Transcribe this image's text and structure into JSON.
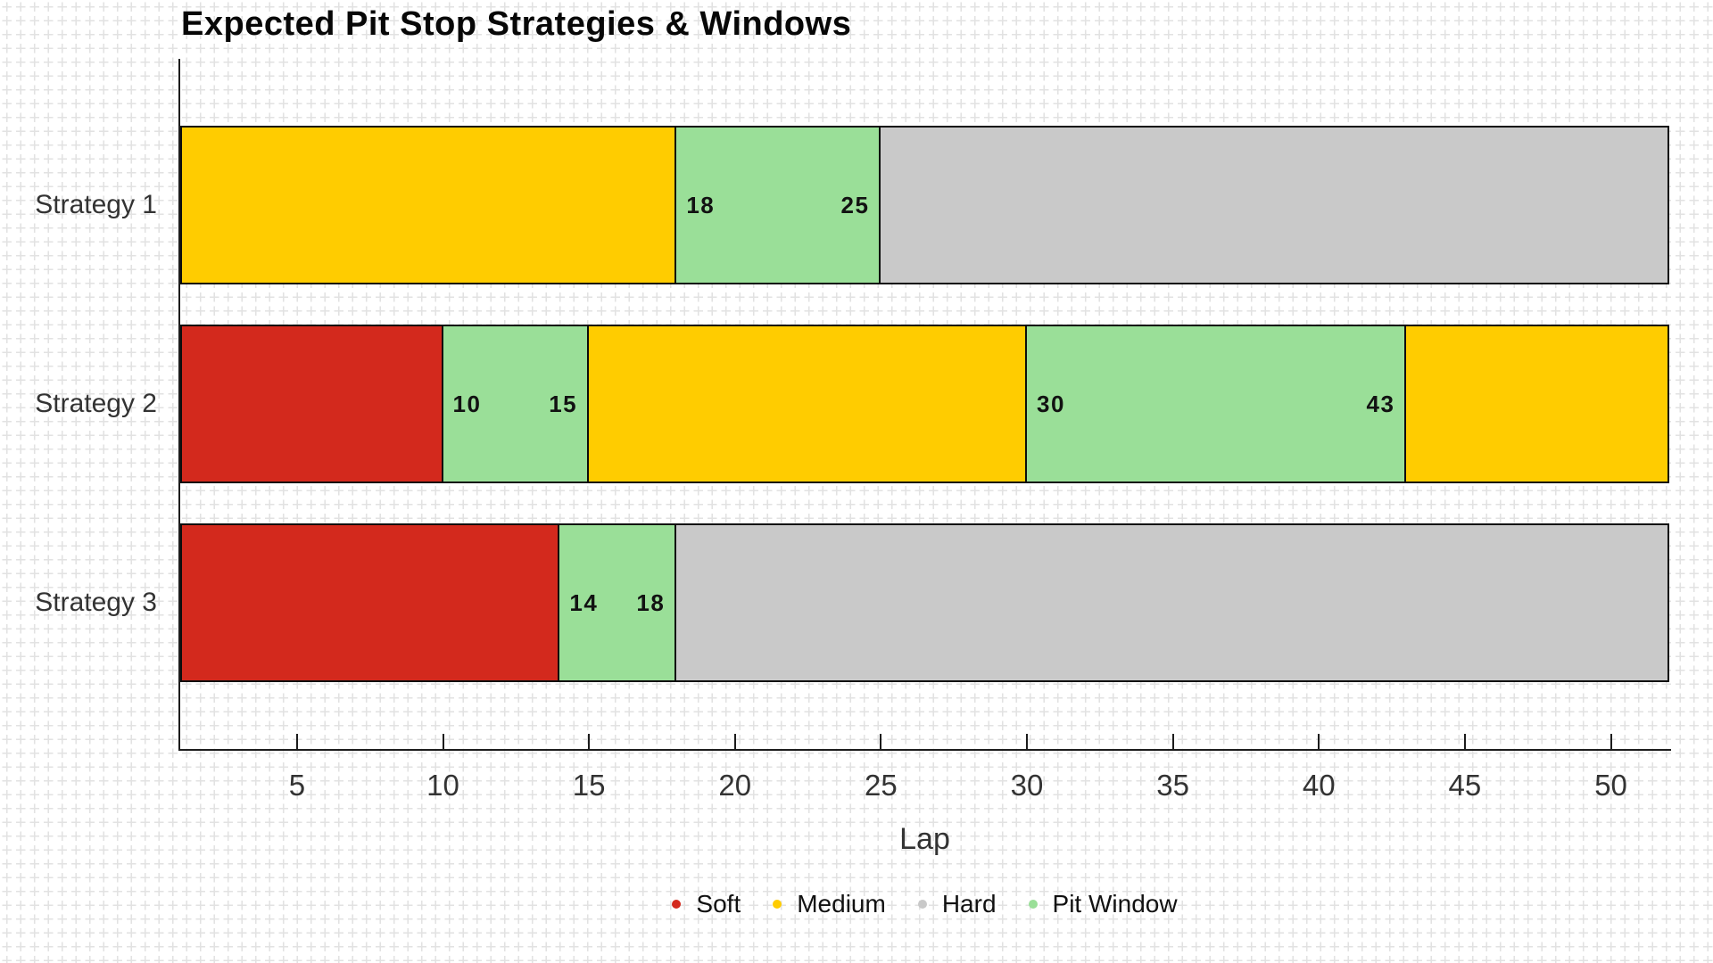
{
  "chart_data": {
    "type": "bar",
    "variant": "horizontal-stacked-timeline",
    "title": "Expected Pit Stop Strategies & Windows",
    "xlabel": "Lap",
    "xlim": [
      1,
      52
    ],
    "xticks": [
      5,
      10,
      15,
      20,
      25,
      30,
      35,
      40,
      45,
      50
    ],
    "grid": "light plus-cross pattern over whole background",
    "legend_position": "bottom-center",
    "categories": [
      "Strategy 1",
      "Strategy 2",
      "Strategy 3"
    ],
    "legend": [
      {
        "label": "Soft",
        "color": "#d3291d"
      },
      {
        "label": "Medium",
        "color": "#ffcc00"
      },
      {
        "label": "Hard",
        "color": "#c9c9c9"
      },
      {
        "label": "Pit Window",
        "color": "#9adf98"
      }
    ],
    "rows": [
      {
        "category": "Strategy 1",
        "segments": [
          {
            "kind": "Medium",
            "start_lap": 1,
            "end_lap": 18
          },
          {
            "kind": "Pit Window",
            "start_lap": 18,
            "end_lap": 25,
            "start_label": "18",
            "end_label": "25"
          },
          {
            "kind": "Hard",
            "start_lap": 25,
            "end_lap": 52
          }
        ]
      },
      {
        "category": "Strategy 2",
        "segments": [
          {
            "kind": "Soft",
            "start_lap": 1,
            "end_lap": 10
          },
          {
            "kind": "Pit Window",
            "start_lap": 10,
            "end_lap": 15,
            "start_label": "10",
            "end_label": "15"
          },
          {
            "kind": "Medium",
            "start_lap": 15,
            "end_lap": 30
          },
          {
            "kind": "Pit Window",
            "start_lap": 30,
            "end_lap": 43,
            "start_label": "30",
            "end_label": "43"
          },
          {
            "kind": "Medium",
            "start_lap": 43,
            "end_lap": 52
          }
        ]
      },
      {
        "category": "Strategy 3",
        "segments": [
          {
            "kind": "Soft",
            "start_lap": 1,
            "end_lap": 14
          },
          {
            "kind": "Pit Window",
            "start_lap": 14,
            "end_lap": 18,
            "start_label": "14",
            "end_label": "18"
          },
          {
            "kind": "Hard",
            "start_lap": 18,
            "end_lap": 52
          }
        ]
      }
    ]
  },
  "style_colors": {
    "soft": "#d3291d",
    "medium": "#ffcc00",
    "hard": "#c9c9c9",
    "pit_window": "#9adf98",
    "segment_border": "#0d0d0d",
    "axis": "#1c1c1c",
    "label_text": "#333333",
    "title_text": "#070707",
    "grid_cross": "#e2e2e2",
    "background": "#ffffff"
  }
}
